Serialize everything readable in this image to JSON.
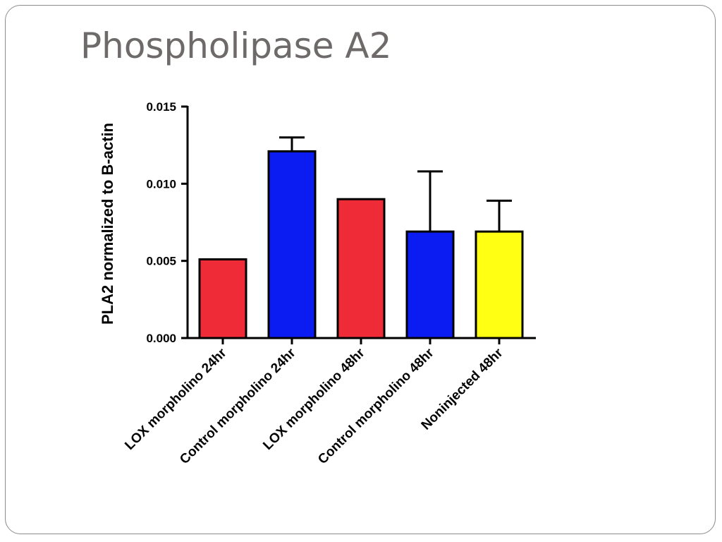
{
  "slide": {
    "title": "Phospholipase A2"
  },
  "chart_data": {
    "type": "bar",
    "title": "",
    "xlabel": "",
    "ylabel": "PLA2 normalized to B-actin",
    "ylim": [
      0,
      0.015
    ],
    "yticks": [
      "0.000",
      "0.005",
      "0.010",
      "0.015"
    ],
    "ytick_values": [
      0,
      0.005,
      0.01,
      0.015
    ],
    "grid": false,
    "legend": "none",
    "categories": [
      "LOX morpholino 24hr",
      "Control morpholino 24hr",
      "LOX morpholino 48hr",
      "Control morpholino 48hr",
      "Noninjected 48hr"
    ],
    "values": [
      0.0051,
      0.0121,
      0.009,
      0.0069,
      0.0069
    ],
    "errors": [
      0,
      0.0009,
      0,
      0.0039,
      0.002
    ],
    "colors": [
      "#ee2b36",
      "#0a1cf2",
      "#ee2b36",
      "#0a1cf2",
      "#ffff14"
    ]
  }
}
